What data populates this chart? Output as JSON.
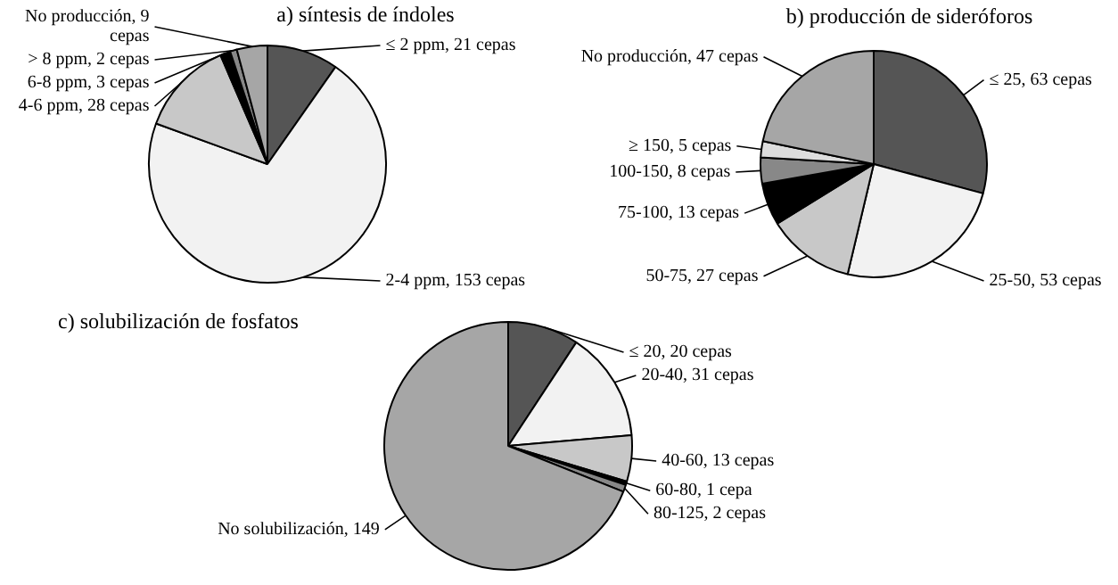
{
  "chart_data": [
    {
      "type": "pie",
      "title": "a) síntesis de índoles",
      "categories": [
        "≤ 2 ppm, 21 cepas",
        "2-4 ppm, 153 cepas",
        "4-6 ppm, 28 cepas",
        "6-8 ppm, 3 cepas",
        "> 8 ppm, 2 cepas",
        "No producción, 9 cepas"
      ],
      "values": [
        21,
        153,
        28,
        3,
        2,
        9
      ],
      "colors": [
        "#555555",
        "#f2f2f2",
        "#c8c8c8",
        "#000000",
        "#888888",
        "#a6a6a6"
      ]
    },
    {
      "type": "pie",
      "title": "b) producción de sideróforos",
      "categories": [
        "≤ 25, 63 cepas",
        "25-50, 53 cepas",
        "50-75, 27 cepas",
        "75-100, 13 cepas",
        "100-150, 8 cepas",
        "≥ 150, 5 cepas",
        "No producción, 47 cepas"
      ],
      "values": [
        63,
        53,
        27,
        13,
        8,
        5,
        47
      ],
      "colors": [
        "#555555",
        "#f2f2f2",
        "#c8c8c8",
        "#000000",
        "#888888",
        "#dddddd",
        "#a6a6a6"
      ]
    },
    {
      "type": "pie",
      "title": "c) solubilización de fosfatos",
      "categories": [
        "≤ 20, 20 cepas",
        "20-40, 31 cepas",
        "40-60, 13 cepas",
        "60-80, 1 cepa",
        "80-125, 2 cepas",
        "No solubilización, 149"
      ],
      "values": [
        20,
        31,
        13,
        1,
        2,
        149
      ],
      "colors": [
        "#555555",
        "#f2f2f2",
        "#c8c8c8",
        "#000000",
        "#888888",
        "#a6a6a6"
      ]
    }
  ]
}
